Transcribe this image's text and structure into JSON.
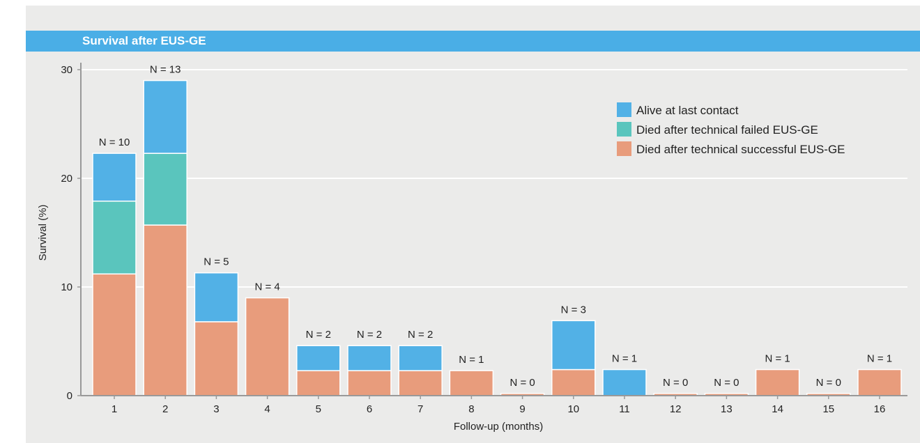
{
  "chart_data": {
    "type": "bar",
    "stacked": true,
    "title": "Survival after EUS-GE",
    "xlabel": "Follow-up (months)",
    "ylabel": "Survival (%)",
    "ylim": [
      0,
      30
    ],
    "yticks": [
      0,
      10,
      20,
      30
    ],
    "grid": true,
    "legend_position": "top-right",
    "categories": [
      "1",
      "2",
      "3",
      "4",
      "5",
      "6",
      "7",
      "8",
      "9",
      "10",
      "11",
      "12",
      "13",
      "14",
      "15",
      "16"
    ],
    "bar_labels": [
      "N = 10",
      "N = 13",
      "N = 5",
      "N = 4",
      "N = 2",
      "N = 2",
      "N = 2",
      "N = 1",
      "N = 0",
      "N = 3",
      "N = 1",
      "N = 0",
      "N = 0",
      "N = 1",
      "N = 0",
      "N = 1"
    ],
    "series": [
      {
        "name": "Died after technical successful EUS-GE",
        "color": "#e89c7c",
        "values": [
          11.2,
          15.7,
          6.8,
          9.0,
          2.3,
          2.3,
          2.3,
          2.3,
          0.2,
          2.4,
          0,
          0.2,
          0.2,
          2.4,
          0.2,
          2.4
        ]
      },
      {
        "name": "Died after technical failed EUS-GE",
        "color": "#5ac5bd",
        "values": [
          6.7,
          6.6,
          0,
          0,
          0,
          0,
          0,
          0,
          0,
          0,
          0,
          0,
          0,
          0,
          0,
          0
        ]
      },
      {
        "name": "Alive at last contact",
        "color": "#52b1e6",
        "values": [
          4.4,
          6.7,
          4.5,
          0,
          2.3,
          2.3,
          2.3,
          0,
          0,
          4.5,
          2.4,
          0,
          0,
          0,
          0,
          0
        ]
      }
    ],
    "legend_order": [
      "Alive at last contact",
      "Died after technical failed EUS-GE",
      "Died after technical successful EUS-GE"
    ]
  }
}
